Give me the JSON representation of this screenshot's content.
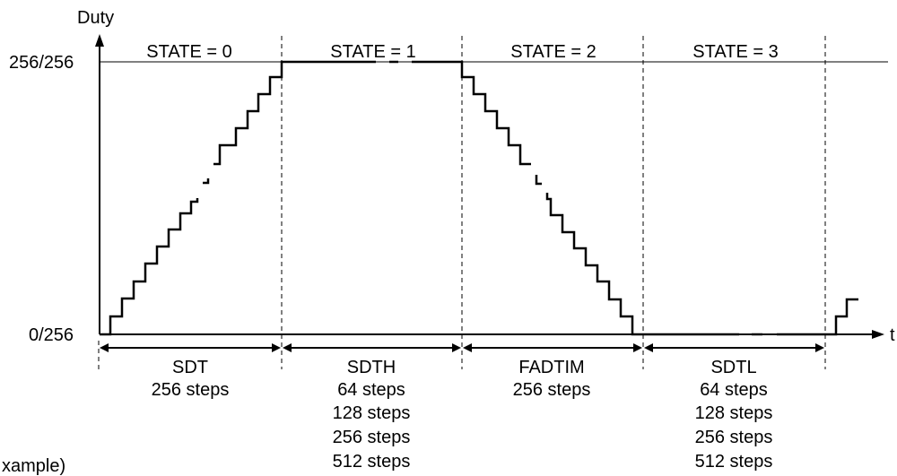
{
  "axes": {
    "y_label": "Duty",
    "x_label": "t",
    "y_max_label": "256/256",
    "y_min_label": "0/256"
  },
  "states": [
    {
      "label": "STATE = 0"
    },
    {
      "label": "STATE = 1"
    },
    {
      "label": "STATE = 2"
    },
    {
      "label": "STATE = 3"
    }
  ],
  "periods": [
    {
      "name": "SDT",
      "steps": [
        "256 steps"
      ]
    },
    {
      "name": "SDTH",
      "steps": [
        "64 steps",
        "128 steps",
        "256 steps",
        "512 steps"
      ]
    },
    {
      "name": "FADTIM",
      "steps": [
        "256 steps"
      ]
    },
    {
      "name": "SDTL",
      "steps": [
        "64 steps",
        "128 steps",
        "256 steps",
        "512 steps"
      ]
    }
  ],
  "footnote": "xample)"
}
